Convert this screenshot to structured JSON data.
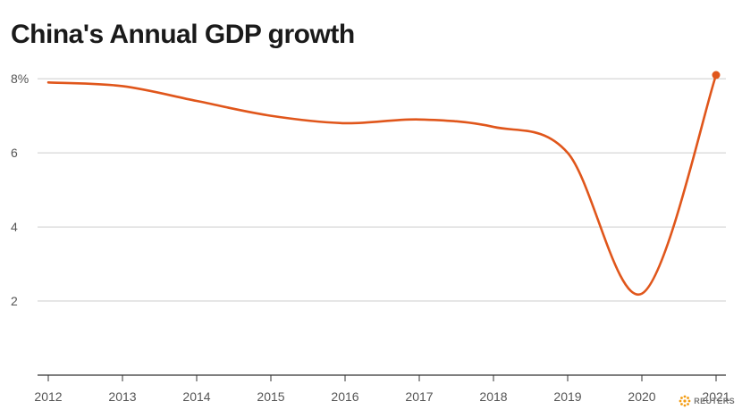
{
  "chart_data": {
    "type": "line",
    "title": "China's Annual GDP growth",
    "xlabel": "",
    "ylabel": "",
    "x": [
      "2012",
      "2013",
      "2014",
      "2015",
      "2016",
      "2017",
      "2018",
      "2019",
      "2020",
      "2021"
    ],
    "series": [
      {
        "values": [
          7.9,
          7.8,
          7.4,
          7.0,
          6.8,
          6.9,
          6.7,
          6.0,
          2.2,
          8.1
        ]
      }
    ],
    "yticks": [
      2,
      4,
      6,
      8
    ],
    "ytick_labels": [
      "2",
      "4",
      "6",
      "8%"
    ],
    "ylim": [
      0,
      8.1
    ],
    "grid": true,
    "legend": "none",
    "line_color": "#e0561b",
    "grid_color": "#cccccc",
    "axis_color": "#333333"
  },
  "branding": {
    "logo_text": "REUTERS",
    "logo_color": "#f39c12"
  }
}
